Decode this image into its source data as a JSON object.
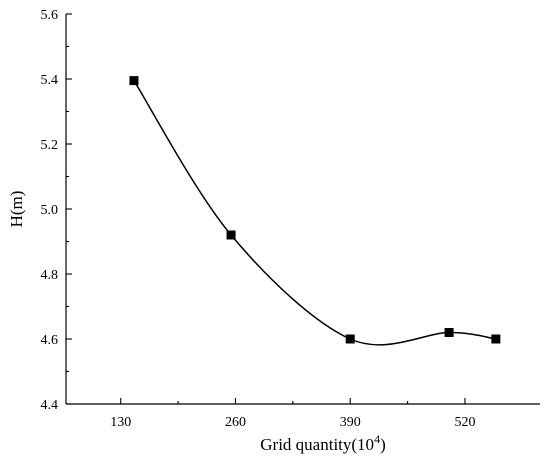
{
  "chart_data": {
    "type": "line",
    "title": "",
    "xlabel": "Grid quantity(10",
    "xlabel_superscript": "4",
    "xlabel_suffix": ")",
    "ylabel": "H(m)",
    "x": [
      145,
      255,
      390,
      502,
      555
    ],
    "series": [
      {
        "values": [
          5.395,
          4.92,
          4.6,
          4.62,
          4.6
        ]
      }
    ],
    "xlim": [
      68,
      605
    ],
    "ylim": [
      4.4,
      5.6
    ],
    "x_ticks": [
      130,
      260,
      390,
      520
    ],
    "y_ticks": [
      4.4,
      4.6,
      4.8,
      5.0,
      5.2,
      5.4,
      5.6
    ],
    "y_tick_labels": [
      "4.4",
      "4.6",
      "4.8",
      "5.0",
      "5.2",
      "5.4",
      "5.6"
    ],
    "grid": false,
    "marker": "square",
    "smooth": true,
    "colors": {
      "line": "#000000",
      "marker": "#000000"
    }
  }
}
